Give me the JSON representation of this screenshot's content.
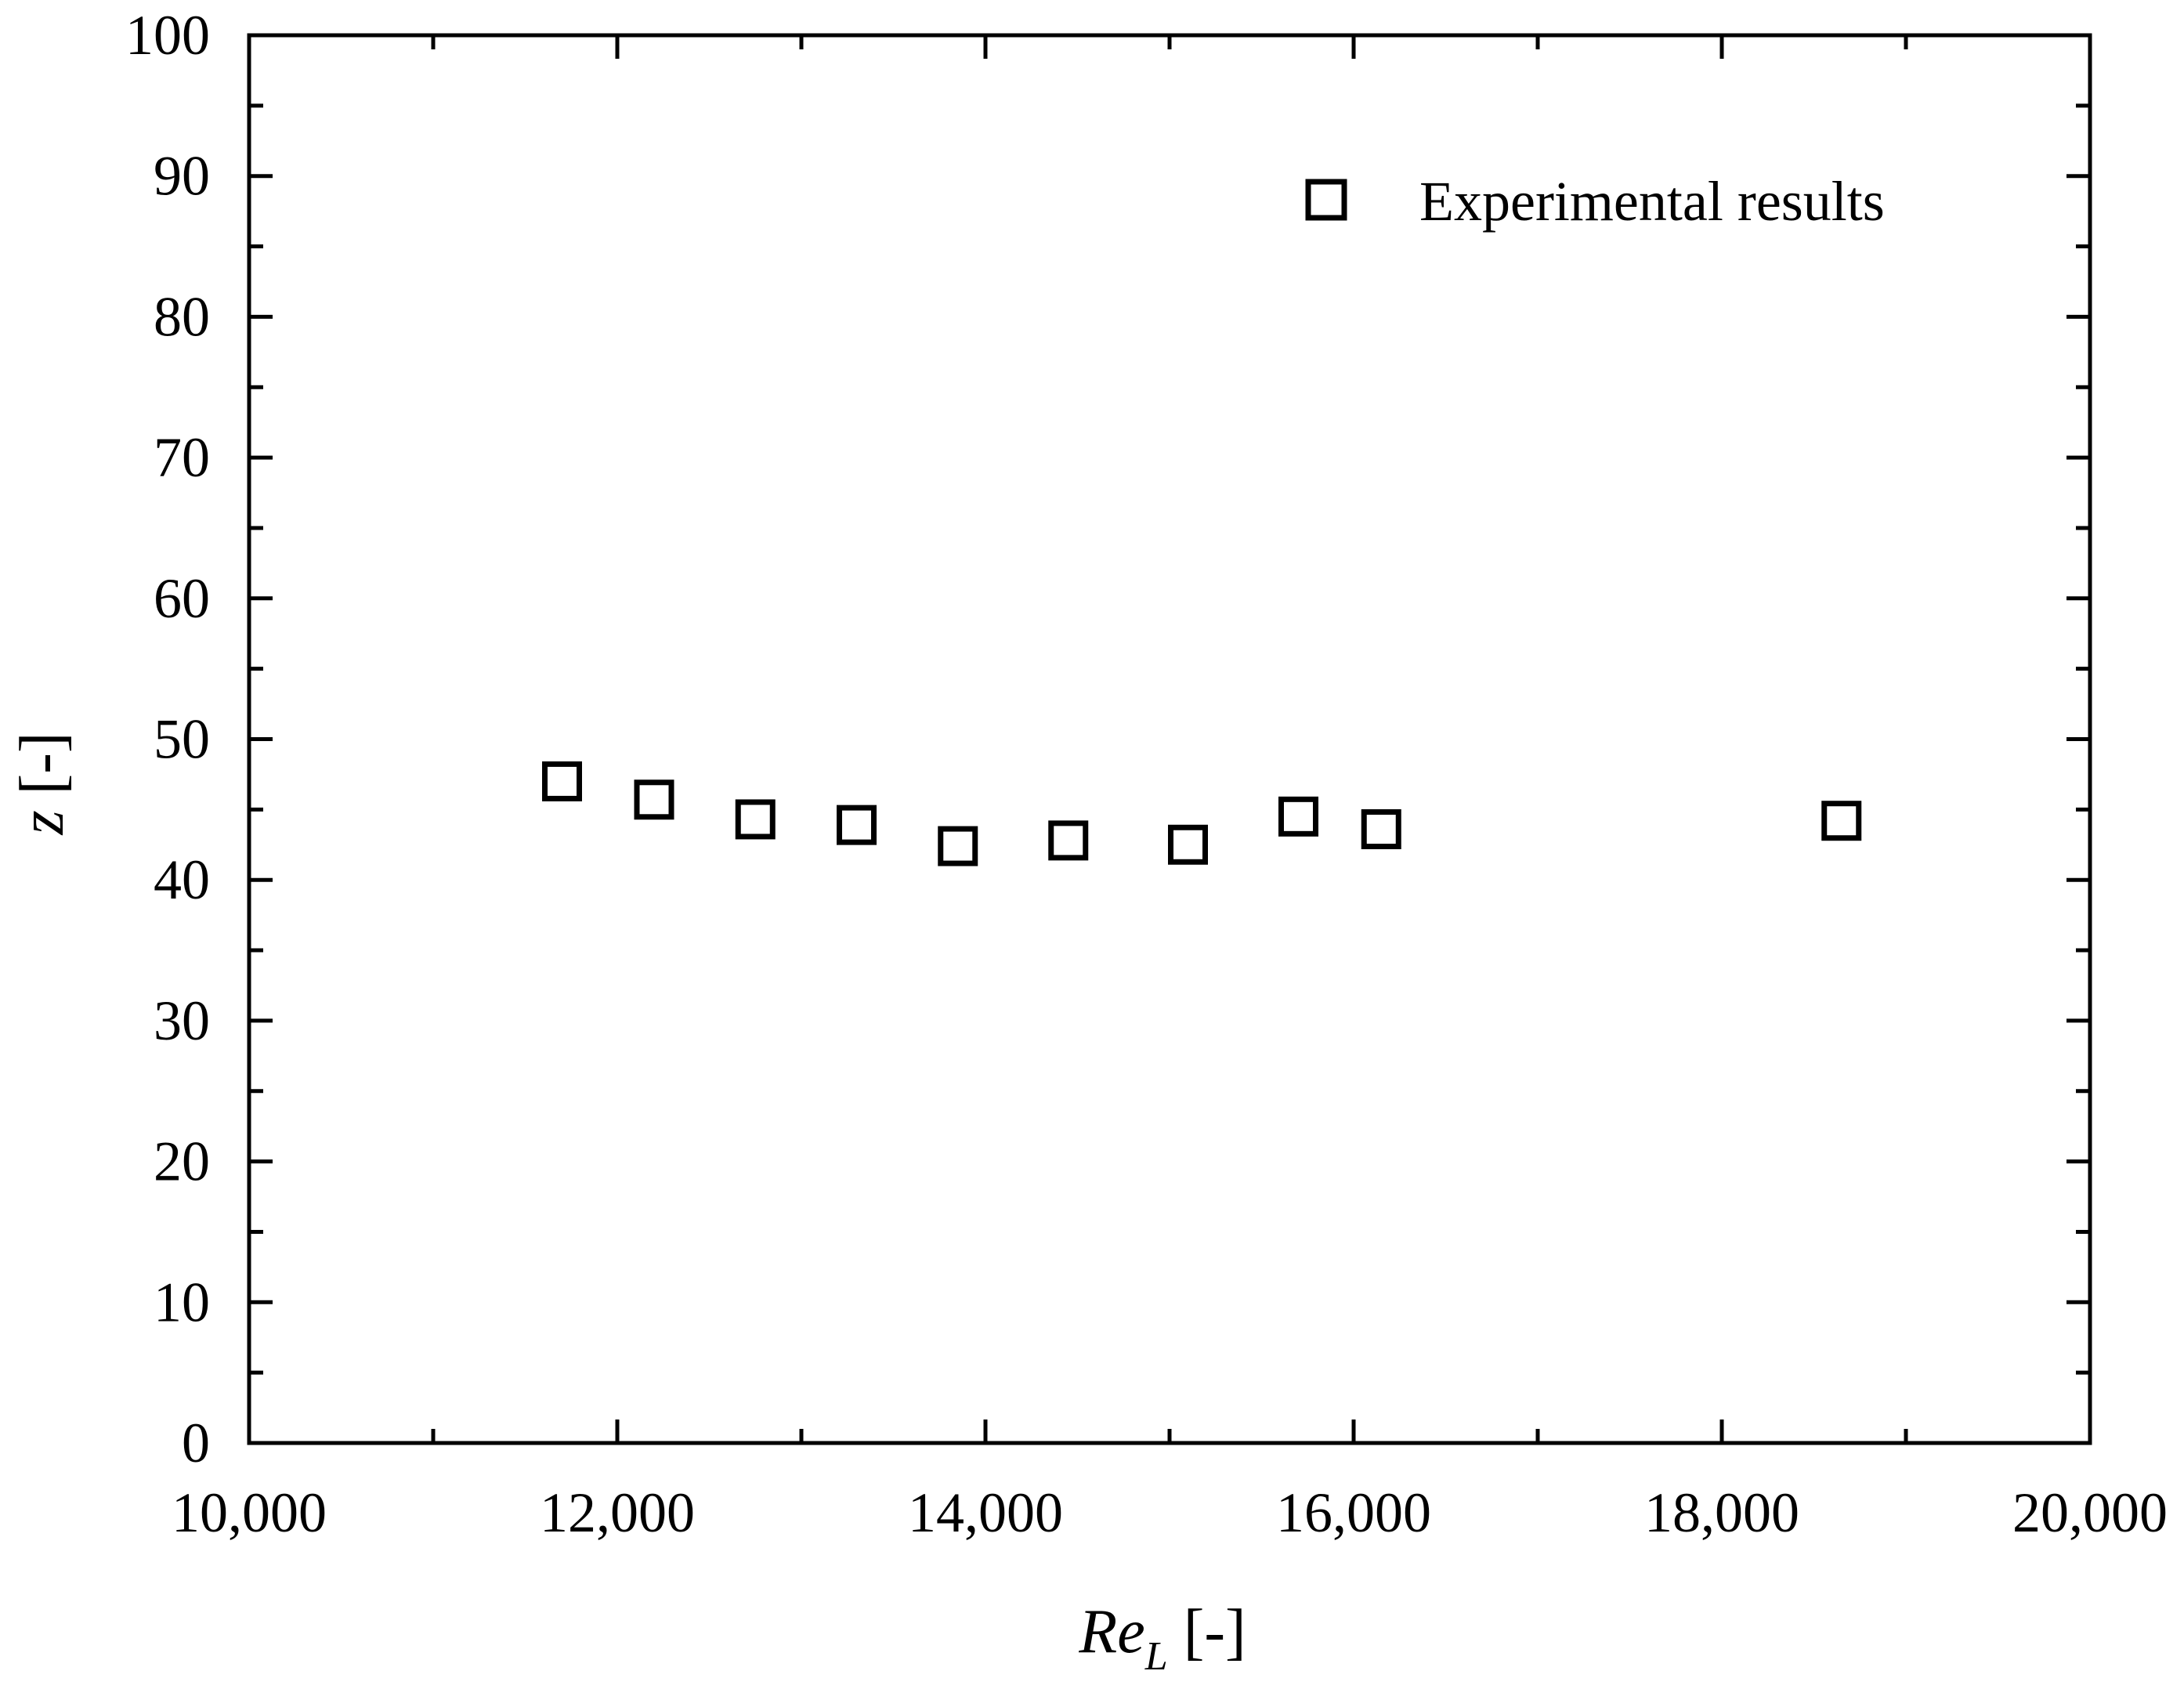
{
  "chart_data": {
    "type": "scatter",
    "series": [
      {
        "name": "Experimental results",
        "marker": "open-square",
        "color": "#000000",
        "points": [
          {
            "x": 11700,
            "y": 47.0
          },
          {
            "x": 12200,
            "y": 45.7
          },
          {
            "x": 12750,
            "y": 44.3
          },
          {
            "x": 13300,
            "y": 43.9
          },
          {
            "x": 13850,
            "y": 42.4
          },
          {
            "x": 14450,
            "y": 42.8
          },
          {
            "x": 15100,
            "y": 42.5
          },
          {
            "x": 15700,
            "y": 44.5
          },
          {
            "x": 16150,
            "y": 43.6
          },
          {
            "x": 18650,
            "y": 44.2
          }
        ]
      }
    ],
    "xlim": [
      10000,
      20000
    ],
    "ylim": [
      0,
      100
    ],
    "x_ticks": [
      "10,000",
      "12,000",
      "14,000",
      "16,000",
      "18,000",
      "20,000"
    ],
    "y_ticks": [
      "0",
      "10",
      "20",
      "30",
      "40",
      "50",
      "60",
      "70",
      "80",
      "90",
      "100"
    ],
    "xlabel": {
      "main": "Re",
      "subscript": "L",
      "unit": "[-]"
    },
    "ylabel": {
      "main": "z",
      "unit": "[-]"
    },
    "legend_position": "top-right",
    "grid": false
  }
}
